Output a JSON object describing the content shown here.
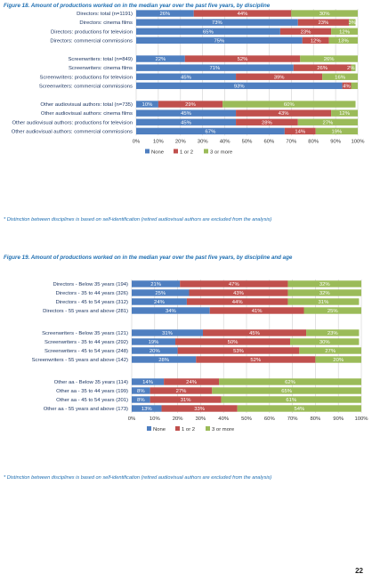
{
  "fig18": {
    "title": "Figure 18. Amount of productions worked on in the median year over the past five years, by discipline",
    "note": "* Distinction between disciplines is based on self-identification (retired audiovisual authors are excluded from the analysis)"
  },
  "fig19": {
    "title": "Figure 19. Amount of productions worked on in the median year over the past five years, by discipline and age",
    "note": "* Distinction between disciplines is based on self-identification (retired audiovisual authors are excluded from the analysis)"
  },
  "page_number": "22",
  "colors": {
    "none": "#4f7fc0",
    "one_or_two": "#c0504d",
    "three_plus": "#9bbb59",
    "title": "#1f6fb2"
  },
  "chart_data": [
    {
      "type": "bar",
      "orientation": "horizontal",
      "stacked": true,
      "xticks": [
        "0%",
        "10%",
        "20%",
        "30%",
        "40%",
        "50%",
        "60%",
        "70%",
        "80%",
        "90%",
        "100%"
      ],
      "legend": [
        "None",
        "1 or 2",
        "3 or more"
      ],
      "groups": [
        {
          "rows": [
            {
              "label": "Directors: total (n=1191)",
              "values": [
                26,
                44,
                30
              ],
              "labels": [
                "26%",
                "44%",
                "30%"
              ]
            },
            {
              "label": "Directors: cinema films",
              "values": [
                73,
                23,
                3
              ],
              "labels": [
                "73%",
                "23%",
                "3%"
              ]
            },
            {
              "label": "Directors: productions for television",
              "values": [
                65,
                23,
                12
              ],
              "labels": [
                "65%",
                "23%",
                "12%"
              ]
            },
            {
              "label": "Directors: commercial commissions",
              "values": [
                75,
                12,
                13
              ],
              "labels": [
                "75%",
                "12%",
                "13%"
              ]
            }
          ]
        },
        {
          "rows": [
            {
              "label": "Screenwriters: total (n=849)",
              "values": [
                22,
                52,
                26
              ],
              "labels": [
                "22%",
                "52%",
                "26%"
              ]
            },
            {
              "label": "Screenwriters: cinema films",
              "values": [
                71,
                26,
                2
              ],
              "labels": [
                "71%",
                "26%",
                "2%"
              ]
            },
            {
              "label": "Screenwriters: productions for television",
              "values": [
                45,
                39,
                16
              ],
              "labels": [
                "45%",
                "39%",
                "16%"
              ]
            },
            {
              "label": "Screenwriters: commercial commissions",
              "values": [
                93,
                4,
                3
              ],
              "labels": [
                "93%",
                "4%",
                ""
              ]
            }
          ]
        },
        {
          "rows": [
            {
              "label": "Other audiovisual authors: total (n=735)",
              "values": [
                10,
                29,
                60
              ],
              "labels": [
                "10%",
                "29%",
                "60%"
              ]
            },
            {
              "label": "Other audiovisual authors: cinema films",
              "values": [
                45,
                43,
                12
              ],
              "labels": [
                "45%",
                "43%",
                "12%"
              ]
            },
            {
              "label": "Other audiovisual authors: productions for television",
              "values": [
                45,
                28,
                27
              ],
              "labels": [
                "45%",
                "28%",
                "27%"
              ]
            },
            {
              "label": "Other audiovisual authors: commercial commissions",
              "values": [
                67,
                14,
                19
              ],
              "labels": [
                "67%",
                "14%",
                "19%"
              ]
            }
          ]
        }
      ]
    },
    {
      "type": "bar",
      "orientation": "horizontal",
      "stacked": true,
      "xticks": [
        "0%",
        "10%",
        "20%",
        "30%",
        "40%",
        "50%",
        "60%",
        "70%",
        "80%",
        "90%",
        "100%"
      ],
      "legend": [
        "None",
        "1 or 2",
        "3 or more"
      ],
      "groups": [
        {
          "rows": [
            {
              "label": "Directors - Below 35 years (194)",
              "values": [
                21,
                47,
                32
              ],
              "labels": [
                "21%",
                "47%",
                "32%"
              ]
            },
            {
              "label": "Directors - 35 to 44 years (326)",
              "values": [
                25,
                43,
                32
              ],
              "labels": [
                "25%",
                "43%",
                "32%"
              ]
            },
            {
              "label": "Directors - 45 to 54 years (312)",
              "values": [
                24,
                44,
                31
              ],
              "labels": [
                "24%",
                "44%",
                "31%"
              ]
            },
            {
              "label": "Directors - 55 years and above (281)",
              "values": [
                34,
                41,
                25
              ],
              "labels": [
                "34%",
                "41%",
                "25%"
              ]
            }
          ]
        },
        {
          "rows": [
            {
              "label": "Screenwriters - Below 35 years (121)",
              "values": [
                31,
                45,
                23
              ],
              "labels": [
                "31%",
                "45%",
                "23%"
              ]
            },
            {
              "label": "Screenwriters - 35 to 44 years (292)",
              "values": [
                19,
                50,
                30
              ],
              "labels": [
                "19%",
                "50%",
                "30%"
              ]
            },
            {
              "label": "Screenwriters - 45 to 54 years (248)",
              "values": [
                20,
                53,
                27
              ],
              "labels": [
                "20%",
                "53%",
                "27%"
              ]
            },
            {
              "label": "Screenwriters - 55 years and above (142)",
              "values": [
                28,
                52,
                20
              ],
              "labels": [
                "28%",
                "52%",
                "20%"
              ]
            }
          ]
        },
        {
          "rows": [
            {
              "label": "Other aa - Below 35 years (114)",
              "values": [
                14,
                24,
                62
              ],
              "labels": [
                "14%",
                "24%",
                "62%"
              ]
            },
            {
              "label": "Other aa - 35 to 44 years (199)",
              "values": [
                8,
                27,
                65
              ],
              "labels": [
                "8%",
                "27%",
                "65%"
              ]
            },
            {
              "label": "Other aa - 45 to 54 years (201)",
              "values": [
                8,
                31,
                61
              ],
              "labels": [
                "8%",
                "31%",
                "61%"
              ]
            },
            {
              "label": "Other aa - 55 years and above (173)",
              "values": [
                13,
                33,
                54
              ],
              "labels": [
                "13%",
                "33%",
                "54%"
              ]
            }
          ]
        }
      ]
    }
  ]
}
